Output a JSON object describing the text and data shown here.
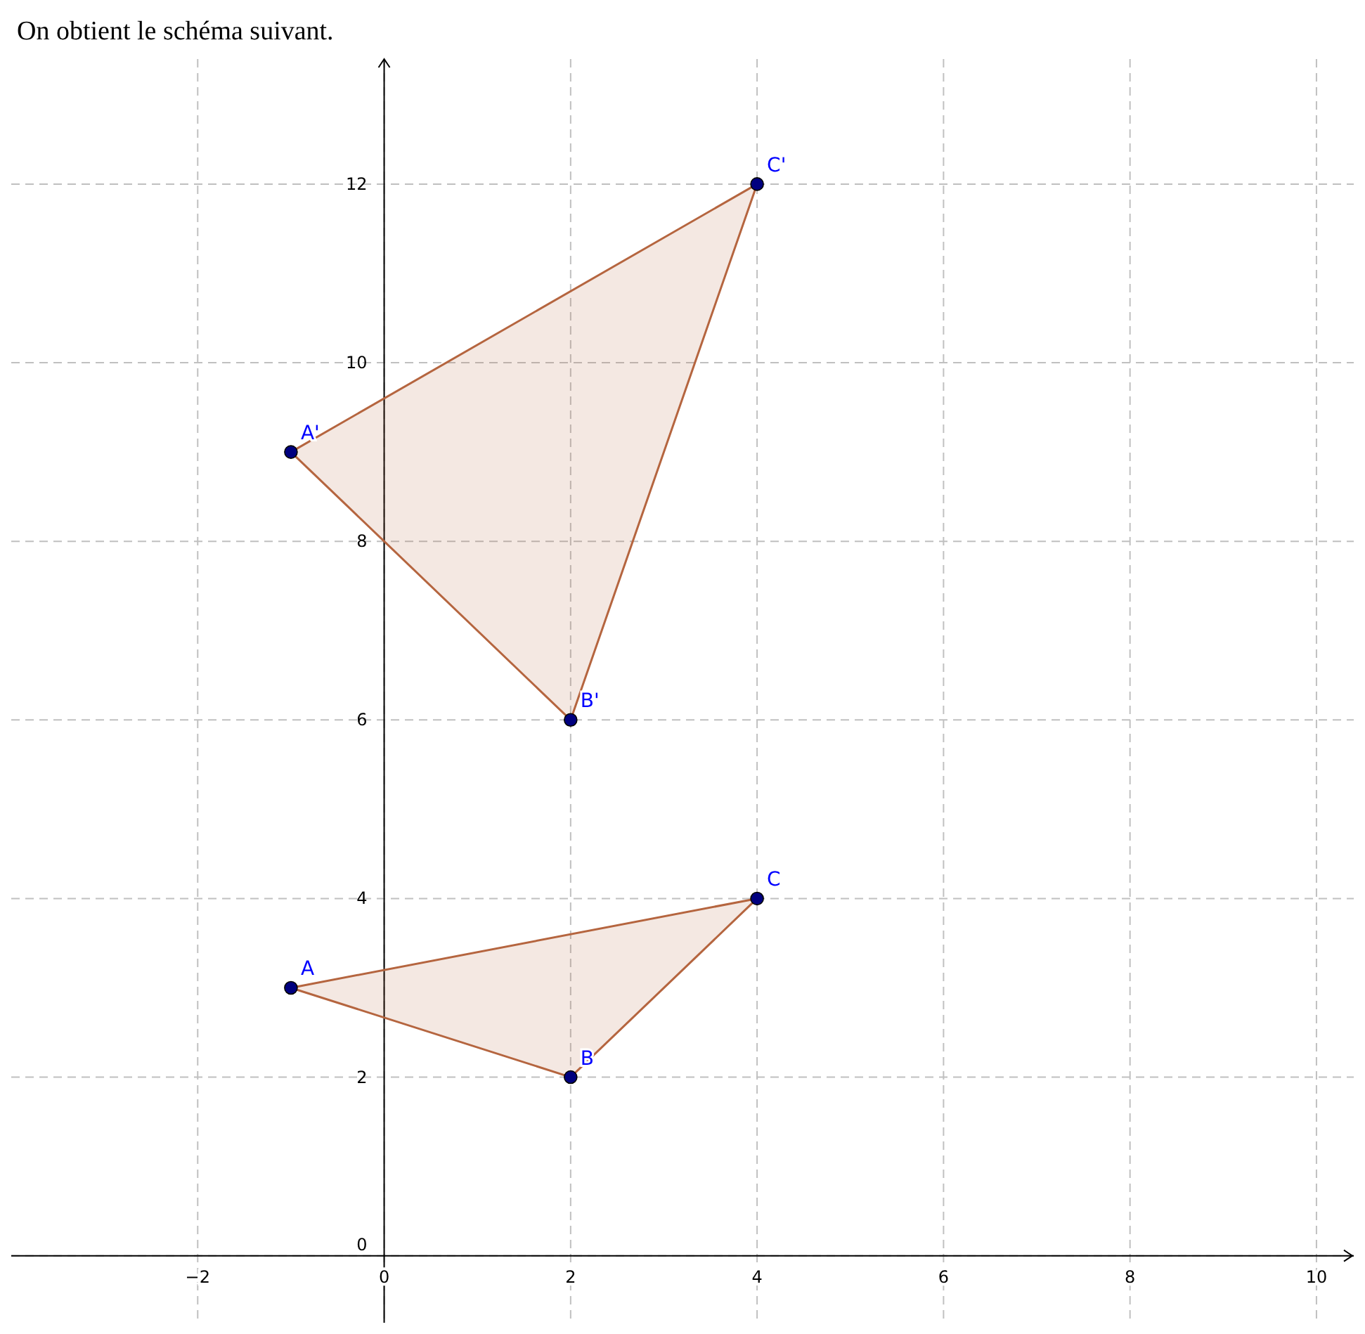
{
  "chart_data": {
    "type": "scatter",
    "title": "On obtient le schéma suivant.",
    "xlim": [
      -4,
      10.4
    ],
    "ylim": [
      -0.75,
      13.4
    ],
    "xticks": [
      -2,
      0,
      2,
      4,
      6,
      8,
      10
    ],
    "yticks": [
      0,
      2,
      4,
      6,
      8,
      10,
      12
    ],
    "grid": true,
    "line_style": "dashed",
    "series": [
      {
        "type": "area",
        "color": "#b5653f",
        "x": [
          -1,
          2,
          4,
          -1
        ],
        "values": [
          3,
          2,
          4,
          3
        ]
      },
      {
        "type": "area",
        "color": "#b5653f",
        "x": [
          -1,
          2,
          4,
          -1
        ],
        "values": [
          9,
          6,
          12,
          9
        ]
      },
      {
        "type": "scatter",
        "color": "#00007f",
        "marker": "circle",
        "x": [
          -1,
          2,
          4,
          -1,
          2,
          4
        ],
        "values": [
          3,
          2,
          4,
          9,
          6,
          12
        ]
      }
    ],
    "annotations": [
      {
        "text": "A",
        "x": -1,
        "y": 3
      },
      {
        "text": "B",
        "x": 2,
        "y": 2
      },
      {
        "text": "C",
        "x": 4,
        "y": 4
      },
      {
        "text": "A'",
        "x": -1,
        "y": 9
      },
      {
        "text": "B'",
        "x": 2,
        "y": 6
      },
      {
        "text": "C'",
        "x": 4,
        "y": 12
      }
    ]
  }
}
